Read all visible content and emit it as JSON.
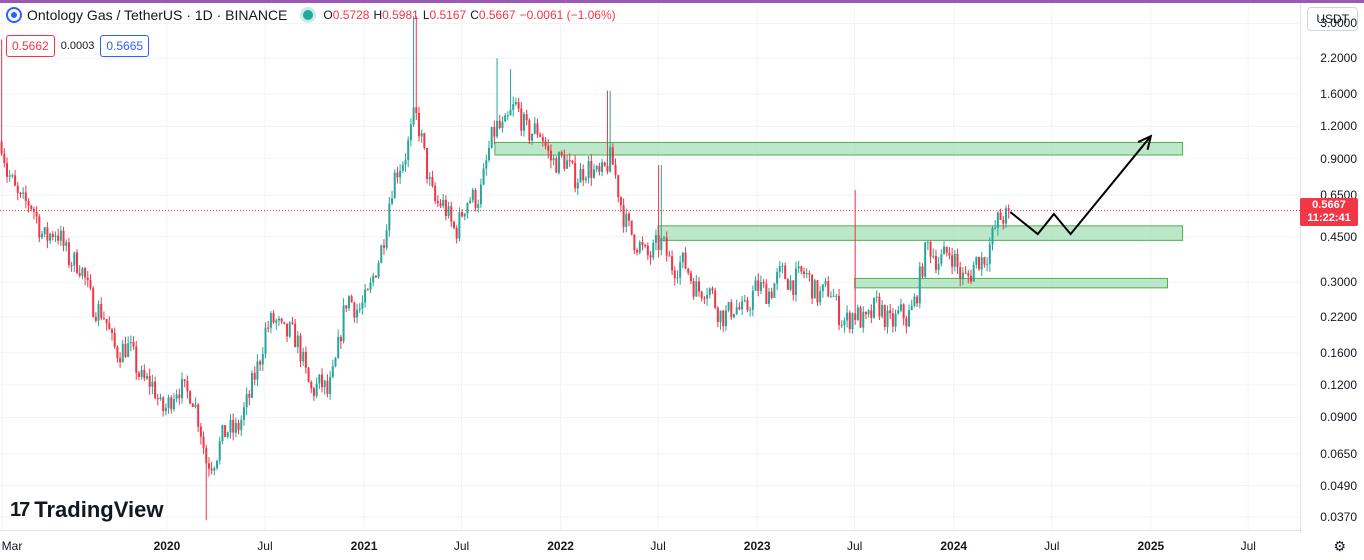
{
  "header": {
    "title": "Ontology Gas / TetherUS · 1D · BINANCE",
    "ohlc": [
      {
        "k": "O",
        "v": "0.5728"
      },
      {
        "k": "H",
        "v": "0.5981"
      },
      {
        "k": "L",
        "v": "0.5167"
      },
      {
        "k": "C",
        "v": "0.5667"
      }
    ],
    "change": "−0.0061 (−1.06%)",
    "sell_price": "0.5662",
    "spread": "0.0003",
    "buy_price": "0.5665",
    "currency": "USDT"
  },
  "price_tag": {
    "price": "0.5667",
    "countdown": "11:22:41",
    "color": "#f23645"
  },
  "brand": {
    "name": "TradingView",
    "mark": "17"
  },
  "colors": {
    "up": "#26a69a",
    "down": "#f23645",
    "zone_fill": "#a5dfb6",
    "zone_stroke": "#4caf50",
    "accent": "#2962ff"
  },
  "chart_data": {
    "type": "candlestick",
    "scale": "log",
    "ylim": [
      0.033,
      3.6
    ],
    "y_ticks": [
      "3.0000",
      "2.2000",
      "1.6000",
      "1.2000",
      "0.9000",
      "0.6500",
      "0.4500",
      "0.3000",
      "0.2200",
      "0.1600",
      "0.1200",
      "0.0900",
      "0.0650",
      "0.0490",
      "0.0370"
    ],
    "x_ticks": [
      {
        "label": "Mar",
        "date": "2019-03-01"
      },
      {
        "label": "2020",
        "date": "2020-01-01"
      },
      {
        "label": "Jul",
        "date": "2020-07-01"
      },
      {
        "label": "2021",
        "date": "2021-01-01"
      },
      {
        "label": "Jul",
        "date": "2021-07-01"
      },
      {
        "label": "2022",
        "date": "2022-01-01"
      },
      {
        "label": "Jul",
        "date": "2022-07-01"
      },
      {
        "label": "2023",
        "date": "2023-01-01"
      },
      {
        "label": "Jul",
        "date": "2023-07-01"
      },
      {
        "label": "2024",
        "date": "2024-01-01"
      },
      {
        "label": "Jul",
        "date": "2024-07-01"
      },
      {
        "label": "2025",
        "date": "2025-01-01"
      },
      {
        "label": "Jul",
        "date": "2025-07-01"
      }
    ],
    "x_range": [
      "2019-02-25",
      "2025-10-05"
    ],
    "last_date": "2024-04-12",
    "path": [
      {
        "date": "2019-02-28",
        "price": 1.05
      },
      {
        "date": "2019-03-10",
        "price": 0.75
      },
      {
        "date": "2019-04-05",
        "price": 0.65
      },
      {
        "date": "2019-05-15",
        "price": 0.48
      },
      {
        "date": "2019-06-25",
        "price": 0.42
      },
      {
        "date": "2019-08-10",
        "price": 0.28
      },
      {
        "date": "2019-09-20",
        "price": 0.18
      },
      {
        "date": "2019-11-01",
        "price": 0.15
      },
      {
        "date": "2019-12-20",
        "price": 0.1
      },
      {
        "date": "2020-02-15",
        "price": 0.12
      },
      {
        "date": "2020-03-13",
        "price": 0.06
      },
      {
        "date": "2020-04-20",
        "price": 0.075
      },
      {
        "date": "2020-06-01",
        "price": 0.1
      },
      {
        "date": "2020-07-01",
        "price": 0.2
      },
      {
        "date": "2020-08-15",
        "price": 0.2
      },
      {
        "date": "2020-09-25",
        "price": 0.12
      },
      {
        "date": "2020-10-25",
        "price": 0.11
      },
      {
        "date": "2020-12-01",
        "price": 0.25
      },
      {
        "date": "2021-01-10",
        "price": 0.25
      },
      {
        "date": "2021-02-20",
        "price": 0.65
      },
      {
        "date": "2021-04-05",
        "price": 1.3
      },
      {
        "date": "2021-05-15",
        "price": 0.6
      },
      {
        "date": "2021-06-20",
        "price": 0.5
      },
      {
        "date": "2021-08-05",
        "price": 0.7
      },
      {
        "date": "2021-09-05",
        "price": 1.2
      },
      {
        "date": "2021-10-10",
        "price": 1.35
      },
      {
        "date": "2021-11-20",
        "price": 1.1
      },
      {
        "date": "2022-01-01",
        "price": 0.85
      },
      {
        "date": "2022-02-20",
        "price": 0.78
      },
      {
        "date": "2022-04-05",
        "price": 0.85
      },
      {
        "date": "2022-05-20",
        "price": 0.4
      },
      {
        "date": "2022-07-10",
        "price": 0.4
      },
      {
        "date": "2022-09-10",
        "price": 0.3
      },
      {
        "date": "2022-11-10",
        "price": 0.22
      },
      {
        "date": "2023-01-20",
        "price": 0.29
      },
      {
        "date": "2023-03-15",
        "price": 0.32
      },
      {
        "date": "2023-05-20",
        "price": 0.26
      },
      {
        "date": "2023-06-20",
        "price": 0.21
      },
      {
        "date": "2023-08-10",
        "price": 0.23
      },
      {
        "date": "2023-10-05",
        "price": 0.21
      },
      {
        "date": "2023-11-15",
        "price": 0.4
      },
      {
        "date": "2023-12-25",
        "price": 0.37
      },
      {
        "date": "2024-02-01",
        "price": 0.31
      },
      {
        "date": "2024-03-10",
        "price": 0.44
      },
      {
        "date": "2024-04-12",
        "price": 0.5667
      }
    ],
    "spikes": [
      {
        "date": "2019-02-28",
        "high": 2.6
      },
      {
        "date": "2020-03-13",
        "low": 0.036
      },
      {
        "date": "2021-04-05",
        "high": 3.2
      },
      {
        "date": "2021-09-05",
        "high": 2.2
      },
      {
        "date": "2021-10-01",
        "high": 2.0
      },
      {
        "date": "2022-04-01",
        "high": 1.65
      },
      {
        "date": "2022-07-05",
        "high": 0.85
      },
      {
        "date": "2023-07-02",
        "high": 0.68
      }
    ],
    "zones": [
      {
        "from": "2021-09-01",
        "to": "2025-03-01",
        "low": 0.93,
        "high": 1.04
      },
      {
        "from": "2022-07-01",
        "to": "2025-03-01",
        "low": 0.435,
        "high": 0.495
      },
      {
        "from": "2023-07-01",
        "to": "2025-02-01",
        "low": 0.285,
        "high": 0.31
      }
    ],
    "projection": [
      {
        "date": "2024-04-15",
        "price": 0.56
      },
      {
        "date": "2024-06-05",
        "price": 0.46
      },
      {
        "date": "2024-07-05",
        "price": 0.55
      },
      {
        "date": "2024-08-05",
        "price": 0.46
      },
      {
        "date": "2025-01-01",
        "price": 1.1
      }
    ],
    "last_price": 0.5667,
    "grid": true
  }
}
